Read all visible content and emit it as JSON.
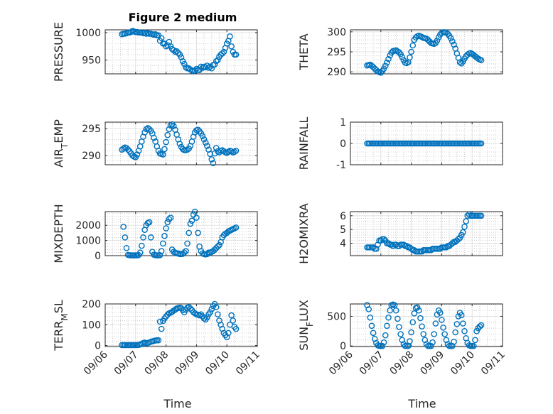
{
  "title": "Figure 2 medium",
  "xlabel": "Time",
  "x_ticks": [
    "09/06",
    "09/07",
    "09/08",
    "09/09",
    "09/10",
    "09/11"
  ],
  "colors": {
    "marker": "#0072BD",
    "axis": "#262626",
    "grid": "#b0b0b0"
  },
  "chart_data": [
    {
      "type": "scatter",
      "ylabel": "PRESSURE",
      "xlim": [
        "09/06",
        "09/11"
      ],
      "ylim": [
        925,
        1005
      ],
      "yticks": [
        950,
        1000
      ],
      "x": [
        6.55,
        6.6,
        6.65,
        6.7,
        6.75,
        6.8,
        6.85,
        6.9,
        6.95,
        7.0,
        7.05,
        7.1,
        7.15,
        7.2,
        7.25,
        7.3,
        7.35,
        7.4,
        7.45,
        7.5,
        7.55,
        7.6,
        7.65,
        7.7,
        7.75,
        7.8,
        7.85,
        7.9,
        7.95,
        8.0,
        8.05,
        8.1,
        8.15,
        8.2,
        8.25,
        8.3,
        8.35,
        8.4,
        8.45,
        8.5,
        8.55,
        8.6,
        8.65,
        8.7,
        8.75,
        8.8,
        8.85,
        8.9,
        8.95,
        9.0,
        9.05,
        9.1,
        9.15,
        9.2,
        9.25,
        9.3,
        9.35,
        9.4,
        9.45,
        9.5,
        9.55,
        9.6,
        9.65,
        9.7,
        9.75,
        9.8,
        9.85,
        9.9,
        9.95,
        10.0,
        10.05,
        10.1,
        10.15,
        10.2,
        10.25,
        10.3
      ],
      "y": [
        997,
        998,
        998,
        999,
        1000,
        1000,
        1001,
        1003,
        1002,
        1001,
        1001,
        1000,
        1000,
        1000,
        999,
        1000,
        998,
        999,
        998,
        998,
        997,
        996,
        997,
        995,
        995,
        985,
        990,
        980,
        980,
        975,
        977,
        983,
        975,
        970,
        968,
        965,
        966,
        963,
        960,
        955,
        948,
        943,
        937,
        935,
        935,
        933,
        931,
        930,
        931,
        934,
        932,
        932,
        938,
        936,
        938,
        937,
        940,
        936,
        938,
        935,
        941,
        942,
        948,
        950,
        956,
        960,
        962,
        965,
        972,
        980,
        985,
        993,
        975,
        965,
        960,
        960
      ]
    },
    {
      "type": "scatter",
      "ylabel": "THETA",
      "xlim": [
        "09/06",
        "09/11"
      ],
      "ylim": [
        289.5,
        300.5
      ],
      "yticks": [
        290,
        295,
        300
      ],
      "x": [
        6.55,
        6.6,
        6.65,
        6.7,
        6.75,
        6.8,
        6.85,
        6.9,
        6.95,
        7.0,
        7.05,
        7.1,
        7.15,
        7.2,
        7.25,
        7.3,
        7.35,
        7.4,
        7.45,
        7.5,
        7.55,
        7.6,
        7.65,
        7.7,
        7.75,
        7.8,
        7.85,
        7.9,
        7.95,
        8.0,
        8.05,
        8.1,
        8.15,
        8.2,
        8.25,
        8.3,
        8.35,
        8.4,
        8.45,
        8.5,
        8.55,
        8.6,
        8.65,
        8.7,
        8.75,
        8.8,
        8.85,
        8.9,
        8.95,
        9.0,
        9.05,
        9.1,
        9.15,
        9.2,
        9.25,
        9.3,
        9.35,
        9.4,
        9.45,
        9.5,
        9.55,
        9.6,
        9.65,
        9.7,
        9.75,
        9.8,
        9.85,
        9.9,
        9.95,
        10.0,
        10.05,
        10.1,
        10.15,
        10.2,
        10.25,
        10.3
      ],
      "y": [
        291.6,
        291.7,
        291.8,
        291.5,
        291.2,
        290.8,
        290.4,
        290.1,
        289.9,
        289.8,
        290.2,
        290.8,
        291.5,
        292.3,
        293.2,
        294.1,
        294.8,
        295.2,
        295.3,
        295.4,
        295.1,
        294.9,
        294.4,
        293.7,
        292.9,
        292.3,
        292.2,
        292.4,
        293.6,
        295.0,
        296.6,
        298.0,
        298.6,
        298.9,
        299.0,
        298.9,
        298.7,
        298.5,
        298.4,
        298.3,
        298.0,
        297.6,
        297.2,
        297.1,
        297.0,
        297.2,
        297.8,
        298.6,
        299.3,
        299.7,
        299.9,
        299.9,
        299.8,
        299.5,
        299.0,
        298.4,
        297.6,
        296.8,
        295.8,
        294.6,
        293.5,
        292.4,
        292.1,
        292.6,
        293.3,
        293.9,
        294.3,
        294.6,
        294.7,
        294.5,
        294.2,
        293.9,
        293.6,
        293.3,
        293.1,
        292.9
      ]
    },
    {
      "type": "scatter",
      "ylabel": "AIR_TEMP",
      "xlim": [
        "09/06",
        "09/11"
      ],
      "ylim": [
        288.3,
        296.2
      ],
      "yticks": [
        290,
        295
      ],
      "x": [
        6.55,
        6.6,
        6.65,
        6.7,
        6.75,
        6.8,
        6.85,
        6.9,
        6.95,
        7.0,
        7.05,
        7.1,
        7.15,
        7.2,
        7.25,
        7.3,
        7.35,
        7.4,
        7.45,
        7.5,
        7.55,
        7.6,
        7.65,
        7.7,
        7.75,
        7.8,
        7.85,
        7.9,
        7.95,
        8.0,
        8.05,
        8.1,
        8.15,
        8.2,
        8.25,
        8.3,
        8.35,
        8.4,
        8.45,
        8.5,
        8.55,
        8.6,
        8.65,
        8.7,
        8.75,
        8.8,
        8.85,
        8.9,
        8.95,
        9.0,
        9.05,
        9.1,
        9.15,
        9.2,
        9.25,
        9.3,
        9.35,
        9.4,
        9.45,
        9.5,
        9.55,
        9.6,
        9.65,
        9.7,
        9.75,
        9.8,
        9.85,
        9.9,
        9.95,
        10.0,
        10.05,
        10.1,
        10.15,
        10.2,
        10.25,
        10.3
      ],
      "y": [
        291.1,
        291.3,
        291.5,
        291.4,
        291.1,
        290.8,
        290.4,
        290.0,
        289.8,
        289.7,
        290.2,
        290.9,
        291.7,
        292.6,
        293.5,
        294.3,
        294.9,
        295.1,
        294.9,
        294.6,
        294.1,
        293.3,
        292.6,
        291.7,
        290.9,
        290.4,
        290.3,
        290.2,
        291.2,
        292.5,
        293.8,
        294.9,
        295.6,
        295.8,
        295.5,
        294.8,
        293.9,
        293.0,
        292.2,
        291.6,
        291.2,
        291.0,
        291.0,
        291.1,
        291.3,
        291.8,
        292.6,
        293.5,
        294.3,
        294.7,
        294.8,
        294.5,
        294.1,
        293.6,
        293.0,
        292.4,
        291.8,
        291.1,
        290.3,
        289.3,
        288.6,
        290.4,
        291.4,
        290.8,
        290.6,
        290.9,
        291.0,
        290.8,
        290.6,
        290.5,
        290.7,
        290.9,
        290.8,
        290.6,
        290.7,
        290.9
      ]
    },
    {
      "type": "scatter",
      "ylabel": "RAINFALL",
      "xlim": [
        "09/06",
        "09/11"
      ],
      "ylim": [
        -1,
        1
      ],
      "yticks": [
        -1,
        0,
        1
      ],
      "x": [
        6.55,
        6.6,
        6.65,
        6.7,
        6.75,
        6.8,
        6.85,
        6.9,
        6.95,
        7.0,
        7.05,
        7.1,
        7.15,
        7.2,
        7.25,
        7.3,
        7.35,
        7.4,
        7.45,
        7.5,
        7.55,
        7.6,
        7.65,
        7.7,
        7.75,
        7.8,
        7.85,
        7.9,
        7.95,
        8.0,
        8.05,
        8.1,
        8.15,
        8.2,
        8.25,
        8.3,
        8.35,
        8.4,
        8.45,
        8.5,
        8.55,
        8.6,
        8.65,
        8.7,
        8.75,
        8.8,
        8.85,
        8.9,
        8.95,
        9.0,
        9.05,
        9.1,
        9.15,
        9.2,
        9.25,
        9.3,
        9.35,
        9.4,
        9.45,
        9.5,
        9.55,
        9.6,
        9.65,
        9.7,
        9.75,
        9.8,
        9.85,
        9.9,
        9.95,
        10.0,
        10.05,
        10.1,
        10.15,
        10.2,
        10.25,
        10.3
      ],
      "y": [
        0,
        0,
        0,
        0,
        0,
        0,
        0,
        0,
        0,
        0,
        0,
        0,
        0,
        0,
        0,
        0,
        0,
        0,
        0,
        0,
        0,
        0,
        0,
        0,
        0,
        0,
        0,
        0,
        0,
        0,
        0,
        0,
        0,
        0,
        0,
        0,
        0,
        0,
        0,
        0,
        0,
        0,
        0,
        0,
        0,
        0,
        0,
        0,
        0,
        0,
        0,
        0,
        0,
        0,
        0,
        0,
        0,
        0,
        0,
        0,
        0,
        0,
        0,
        0,
        0,
        0,
        0,
        0,
        0,
        0,
        0,
        0,
        0,
        0,
        0,
        0
      ]
    },
    {
      "type": "scatter",
      "ylabel": "MIXDEPTH",
      "xlim": [
        "09/06",
        "09/11"
      ],
      "ylim": [
        0,
        2900
      ],
      "yticks": [
        0,
        1000,
        2000
      ],
      "x": [
        6.6,
        6.65,
        6.7,
        6.75,
        6.8,
        6.85,
        6.9,
        6.95,
        7.0,
        7.05,
        7.1,
        7.15,
        7.2,
        7.25,
        7.3,
        7.35,
        7.4,
        7.45,
        7.5,
        7.55,
        7.6,
        7.65,
        7.7,
        7.75,
        7.8,
        7.85,
        7.9,
        7.95,
        8.0,
        8.05,
        8.1,
        8.15,
        8.2,
        8.25,
        8.3,
        8.35,
        8.4,
        8.45,
        8.5,
        8.55,
        8.6,
        8.65,
        8.7,
        8.75,
        8.8,
        8.85,
        8.9,
        8.95,
        9.0,
        9.05,
        9.1,
        9.15,
        9.2,
        9.25,
        9.3,
        9.35,
        9.4,
        9.45,
        9.5,
        9.55,
        9.6,
        9.65,
        9.7,
        9.75,
        9.8,
        9.85,
        9.9,
        9.95,
        10.0,
        10.05,
        10.1,
        10.15,
        10.2,
        10.25,
        10.3
      ],
      "y": [
        1900,
        1200,
        500,
        50,
        30,
        20,
        20,
        20,
        20,
        20,
        40,
        200,
        650,
        1200,
        1700,
        2000,
        2150,
        2200,
        1200,
        250,
        60,
        30,
        20,
        20,
        30,
        300,
        800,
        1300,
        1800,
        2200,
        2400,
        2500,
        400,
        250,
        200,
        150,
        150,
        100,
        100,
        120,
        200,
        300,
        800,
        1500,
        2100,
        2300,
        2700,
        2900,
        2500,
        1500,
        600,
        300,
        150,
        100,
        80,
        100,
        200,
        200,
        250,
        300,
        400,
        500,
        600,
        700,
        900,
        1200,
        1350,
        1450,
        1500,
        1600,
        1650,
        1700,
        1750,
        1800,
        1850
      ]
    },
    {
      "type": "scatter",
      "ylabel": "H2OMIXRA",
      "xlim": [
        "09/06",
        "09/11"
      ],
      "ylim": [
        3.1,
        6.3
      ],
      "yticks": [
        4,
        5,
        6
      ],
      "x": [
        6.55,
        6.6,
        6.65,
        6.7,
        6.75,
        6.8,
        6.85,
        6.9,
        6.95,
        7.0,
        7.05,
        7.1,
        7.15,
        7.2,
        7.25,
        7.3,
        7.35,
        7.4,
        7.45,
        7.5,
        7.55,
        7.6,
        7.65,
        7.7,
        7.75,
        7.8,
        7.85,
        7.9,
        7.95,
        8.0,
        8.05,
        8.1,
        8.15,
        8.2,
        8.25,
        8.3,
        8.35,
        8.4,
        8.45,
        8.5,
        8.55,
        8.6,
        8.65,
        8.7,
        8.75,
        8.8,
        8.85,
        8.9,
        8.95,
        9.0,
        9.05,
        9.1,
        9.15,
        9.2,
        9.25,
        9.3,
        9.35,
        9.4,
        9.45,
        9.5,
        9.55,
        9.6,
        9.65,
        9.7,
        9.75,
        9.8,
        9.85,
        9.9,
        9.95,
        10.0,
        10.05,
        10.1,
        10.15,
        10.2,
        10.25,
        10.3
      ],
      "y": [
        3.7,
        3.7,
        3.7,
        3.7,
        3.7,
        3.6,
        3.6,
        3.9,
        4.2,
        4.2,
        4.3,
        4.3,
        4.2,
        4.0,
        4.0,
        3.9,
        3.9,
        3.8,
        3.9,
        3.9,
        3.8,
        3.8,
        3.9,
        3.9,
        3.9,
        3.8,
        3.8,
        3.7,
        3.7,
        3.6,
        3.5,
        3.5,
        3.4,
        3.4,
        3.4,
        3.4,
        3.4,
        3.5,
        3.5,
        3.5,
        3.5,
        3.5,
        3.5,
        3.6,
        3.6,
        3.6,
        3.6,
        3.6,
        3.6,
        3.7,
        3.7,
        3.7,
        3.7,
        3.8,
        3.8,
        3.9,
        4.0,
        4.1,
        4.1,
        4.2,
        4.3,
        4.4,
        4.6,
        4.8,
        5.2,
        5.6,
        6.0,
        6.1,
        6.0,
        6.0,
        6.0,
        6.0,
        6.0,
        6.0,
        6.0,
        6.0
      ]
    },
    {
      "type": "scatter",
      "ylabel": "TERR_MSL",
      "xlim": [
        "09/06",
        "09/11"
      ],
      "ylim": [
        -5,
        200
      ],
      "yticks": [
        0,
        100,
        200
      ],
      "x": [
        6.55,
        6.6,
        6.65,
        6.7,
        6.75,
        6.8,
        6.85,
        6.9,
        6.95,
        7.0,
        7.05,
        7.1,
        7.15,
        7.2,
        7.25,
        7.3,
        7.35,
        7.4,
        7.45,
        7.5,
        7.55,
        7.6,
        7.65,
        7.7,
        7.75,
        7.8,
        7.85,
        7.9,
        7.95,
        8.0,
        8.05,
        8.1,
        8.15,
        8.2,
        8.25,
        8.3,
        8.35,
        8.4,
        8.45,
        8.5,
        8.55,
        8.6,
        8.65,
        8.7,
        8.75,
        8.8,
        8.85,
        8.9,
        8.95,
        9.0,
        9.05,
        9.1,
        9.15,
        9.2,
        9.25,
        9.3,
        9.35,
        9.4,
        9.45,
        9.5,
        9.55,
        9.6,
        9.65,
        9.7,
        9.75,
        9.8,
        9.85,
        9.9,
        9.95,
        10.0,
        10.05,
        10.1,
        10.15,
        10.2,
        10.25,
        10.3
      ],
      "y": [
        2,
        2,
        2,
        2,
        2,
        2,
        2,
        2,
        2,
        2,
        2,
        3,
        5,
        8,
        12,
        14,
        10,
        12,
        15,
        18,
        20,
        22,
        24,
        25,
        25,
        115,
        80,
        118,
        130,
        140,
        148,
        155,
        158,
        162,
        168,
        172,
        178,
        180,
        182,
        180,
        170,
        160,
        172,
        182,
        185,
        178,
        170,
        160,
        155,
        150,
        148,
        145,
        150,
        140,
        130,
        125,
        135,
        150,
        160,
        175,
        190,
        200,
        185,
        150,
        120,
        100,
        80,
        60,
        50,
        40,
        60,
        100,
        145,
        120,
        90,
        80
      ]
    },
    {
      "type": "scatter",
      "ylabel": "SUN_FLUX",
      "xlim": [
        "09/06",
        "09/11"
      ],
      "ylim": [
        -10,
        710
      ],
      "yticks": [
        0,
        500
      ],
      "x": [
        6.55,
        6.6,
        6.65,
        6.7,
        6.75,
        6.8,
        6.85,
        6.9,
        6.95,
        7.0,
        7.05,
        7.1,
        7.15,
        7.2,
        7.25,
        7.3,
        7.35,
        7.4,
        7.45,
        7.5,
        7.55,
        7.6,
        7.65,
        7.7,
        7.75,
        7.8,
        7.85,
        7.9,
        7.95,
        8.0,
        8.05,
        8.1,
        8.15,
        8.2,
        8.25,
        8.3,
        8.35,
        8.4,
        8.45,
        8.5,
        8.55,
        8.6,
        8.65,
        8.7,
        8.75,
        8.8,
        8.85,
        8.9,
        8.95,
        9.0,
        9.05,
        9.1,
        9.15,
        9.2,
        9.25,
        9.3,
        9.35,
        9.4,
        9.45,
        9.5,
        9.55,
        9.6,
        9.65,
        9.7,
        9.75,
        9.8,
        9.85,
        9.9,
        9.95,
        10.0,
        10.05,
        10.1,
        10.15,
        10.2,
        10.25,
        10.3
      ],
      "y": [
        690,
        620,
        480,
        340,
        220,
        120,
        50,
        10,
        0,
        0,
        0,
        60,
        180,
        340,
        480,
        600,
        690,
        700,
        690,
        600,
        460,
        320,
        200,
        100,
        30,
        0,
        0,
        0,
        80,
        230,
        400,
        550,
        640,
        650,
        600,
        470,
        330,
        200,
        100,
        30,
        0,
        0,
        0,
        60,
        200,
        380,
        530,
        600,
        560,
        440,
        310,
        200,
        100,
        30,
        0,
        0,
        0,
        70,
        230,
        370,
        500,
        560,
        520,
        380,
        250,
        130,
        50,
        10,
        0,
        0,
        0,
        100,
        250,
        300,
        330,
        350
      ]
    }
  ]
}
